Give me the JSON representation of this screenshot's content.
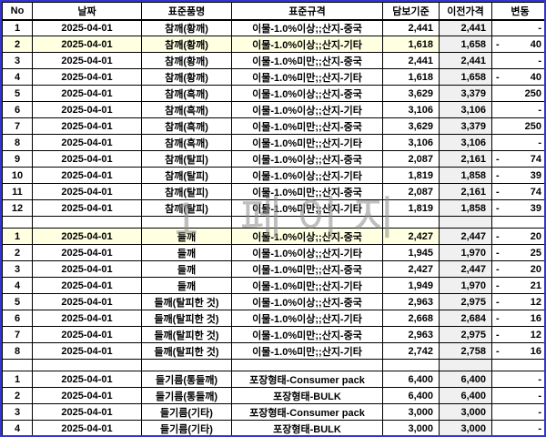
{
  "page": {
    "watermark": "1 페이지"
  },
  "colors": {
    "page_break_border": "#3434d0",
    "grid_line": "#000000",
    "highlight_row": "#ffffe1",
    "prev_price_column": "#f0f0f0",
    "watermark_gray": "#8c8c8c"
  },
  "table": {
    "headers": [
      "No",
      "날짜",
      "표준품명",
      "표준규격",
      "담보기준",
      "이전가격",
      "변동"
    ],
    "sections": [
      {
        "rows": [
          {
            "no": "1",
            "date": "2025-04-01",
            "name": "참깨(황깨)",
            "spec": "이물-1.0%이상;;산지-중국",
            "base": "2,441",
            "prev": "2,441",
            "change_minus": "",
            "change": "-",
            "highlight": false
          },
          {
            "no": "2",
            "date": "2025-04-01",
            "name": "참깨(황깨)",
            "spec": "이물-1.0%이상;;산지-기타",
            "base": "1,618",
            "prev": "1,658",
            "change_minus": "-",
            "change": "40",
            "highlight": true
          },
          {
            "no": "3",
            "date": "2025-04-01",
            "name": "참깨(황깨)",
            "spec": "이물-1.0%미만;;산지-중국",
            "base": "2,441",
            "prev": "2,441",
            "change_minus": "",
            "change": "-",
            "highlight": false
          },
          {
            "no": "4",
            "date": "2025-04-01",
            "name": "참깨(황깨)",
            "spec": "이물-1.0%미만;;산지-기타",
            "base": "1,618",
            "prev": "1,658",
            "change_minus": "-",
            "change": "40",
            "highlight": false
          },
          {
            "no": "5",
            "date": "2025-04-01",
            "name": "참깨(흑깨)",
            "spec": "이물-1.0%이상;;산지-중국",
            "base": "3,629",
            "prev": "3,379",
            "change_minus": "",
            "change": "250",
            "highlight": false
          },
          {
            "no": "6",
            "date": "2025-04-01",
            "name": "참깨(흑깨)",
            "spec": "이물-1.0%이상;;산지-기타",
            "base": "3,106",
            "prev": "3,106",
            "change_minus": "",
            "change": "-",
            "highlight": false
          },
          {
            "no": "7",
            "date": "2025-04-01",
            "name": "참깨(흑깨)",
            "spec": "이물-1.0%미만;;산지-중국",
            "base": "3,629",
            "prev": "3,379",
            "change_minus": "",
            "change": "250",
            "highlight": false
          },
          {
            "no": "8",
            "date": "2025-04-01",
            "name": "참깨(흑깨)",
            "spec": "이물-1.0%미만;;산지-기타",
            "base": "3,106",
            "prev": "3,106",
            "change_minus": "",
            "change": "-",
            "highlight": false
          },
          {
            "no": "9",
            "date": "2025-04-01",
            "name": "참깨(탈피)",
            "spec": "이물-1.0%이상;;산지-중국",
            "base": "2,087",
            "prev": "2,161",
            "change_minus": "-",
            "change": "74",
            "highlight": false
          },
          {
            "no": "10",
            "date": "2025-04-01",
            "name": "참깨(탈피)",
            "spec": "이물-1.0%이상;;산지-기타",
            "base": "1,819",
            "prev": "1,858",
            "change_minus": "-",
            "change": "39",
            "highlight": false
          },
          {
            "no": "11",
            "date": "2025-04-01",
            "name": "참깨(탈피)",
            "spec": "이물-1.0%미만;;산지-중국",
            "base": "2,087",
            "prev": "2,161",
            "change_minus": "-",
            "change": "74",
            "highlight": false
          },
          {
            "no": "12",
            "date": "2025-04-01",
            "name": "참깨(탈피)",
            "spec": "이물-1.0%미만;;산지-기타",
            "base": "1,819",
            "prev": "1,858",
            "change_minus": "-",
            "change": "39",
            "highlight": false
          }
        ]
      },
      {
        "rows": [
          {
            "no": "1",
            "date": "2025-04-01",
            "name": "들깨",
            "spec": "이물-1.0%이상;;산지-중국",
            "base": "2,427",
            "prev": "2,447",
            "change_minus": "-",
            "change": "20",
            "highlight": true
          },
          {
            "no": "2",
            "date": "2025-04-01",
            "name": "들깨",
            "spec": "이물-1.0%이상;;산지-기타",
            "base": "1,945",
            "prev": "1,970",
            "change_minus": "-",
            "change": "25",
            "highlight": false
          },
          {
            "no": "3",
            "date": "2025-04-01",
            "name": "들깨",
            "spec": "이물-1.0%미만;;산지-중국",
            "base": "2,427",
            "prev": "2,447",
            "change_minus": "-",
            "change": "20",
            "highlight": false
          },
          {
            "no": "4",
            "date": "2025-04-01",
            "name": "들깨",
            "spec": "이물-1.0%미만;;산지-기타",
            "base": "1,949",
            "prev": "1,970",
            "change_minus": "-",
            "change": "21",
            "highlight": false
          },
          {
            "no": "5",
            "date": "2025-04-01",
            "name": "들깨(탈피한 것)",
            "spec": "이물-1.0%이상;;산지-중국",
            "base": "2,963",
            "prev": "2,975",
            "change_minus": "-",
            "change": "12",
            "highlight": false
          },
          {
            "no": "6",
            "date": "2025-04-01",
            "name": "들깨(탈피한 것)",
            "spec": "이물-1.0%이상;;산지-기타",
            "base": "2,668",
            "prev": "2,684",
            "change_minus": "-",
            "change": "16",
            "highlight": false
          },
          {
            "no": "7",
            "date": "2025-04-01",
            "name": "들깨(탈피한 것)",
            "spec": "이물-1.0%미만;;산지-중국",
            "base": "2,963",
            "prev": "2,975",
            "change_minus": "-",
            "change": "12",
            "highlight": false
          },
          {
            "no": "8",
            "date": "2025-04-01",
            "name": "들깨(탈피한 것)",
            "spec": "이물-1.0%미만;;산지-기타",
            "base": "2,742",
            "prev": "2,758",
            "change_minus": "-",
            "change": "16",
            "highlight": false
          }
        ]
      },
      {
        "rows": [
          {
            "no": "1",
            "date": "2025-04-01",
            "name": "들기름(통들깨)",
            "spec": "포장형태-Consumer pack",
            "base": "6,400",
            "prev": "6,400",
            "change_minus": "",
            "change": "-",
            "highlight": false
          },
          {
            "no": "2",
            "date": "2025-04-01",
            "name": "들기름(통들깨)",
            "spec": "포장형태-BULK",
            "base": "6,400",
            "prev": "6,400",
            "change_minus": "",
            "change": "-",
            "highlight": false
          },
          {
            "no": "3",
            "date": "2025-04-01",
            "name": "들기름(기타)",
            "spec": "포장형태-Consumer pack",
            "base": "3,000",
            "prev": "3,000",
            "change_minus": "",
            "change": "-",
            "highlight": false
          },
          {
            "no": "4",
            "date": "2025-04-01",
            "name": "들기름(기타)",
            "spec": "포장형태-BULK",
            "base": "3,000",
            "prev": "3,000",
            "change_minus": "",
            "change": "-",
            "highlight": false
          }
        ]
      }
    ]
  }
}
